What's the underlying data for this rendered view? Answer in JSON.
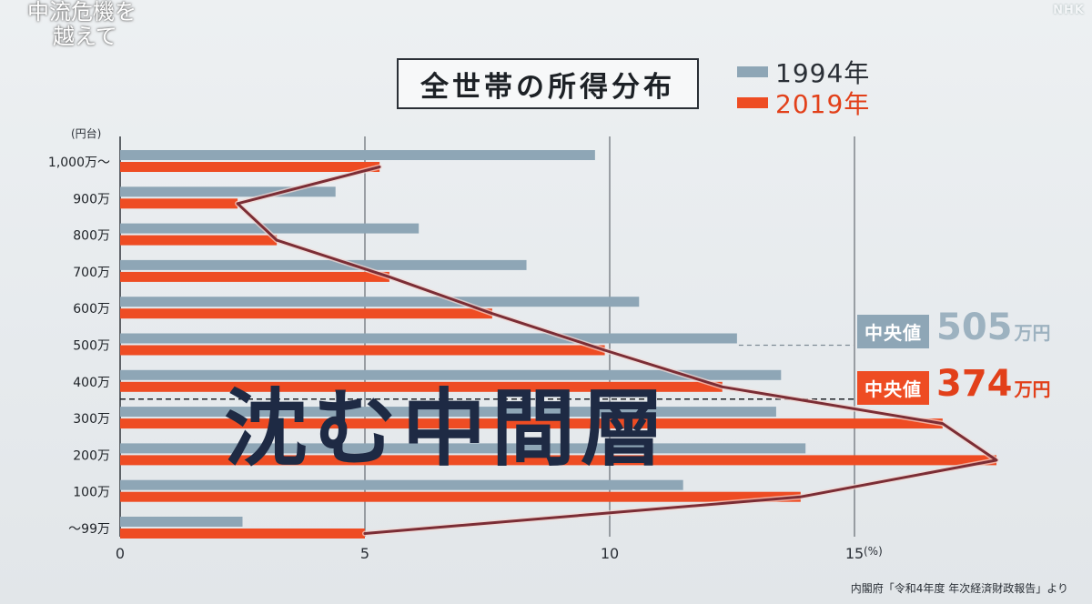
{
  "program_title": {
    "line1": "中流危機を",
    "line2": "越えて"
  },
  "broadcaster": "NHK",
  "colors": {
    "y1994": "#8ea6b6",
    "y2019": "#ee4c23",
    "trend": "#7b2d35"
  },
  "chart_data": {
    "type": "bar",
    "orientation": "horizontal",
    "title": "全世帯の所得分布",
    "y_unit": "(円台)",
    "x_unit": "(%)",
    "categories": [
      "1,000万〜",
      "900万",
      "800万",
      "700万",
      "600万",
      "500万",
      "400万",
      "300万",
      "200万",
      "100万",
      "〜99万"
    ],
    "series": [
      {
        "name": "1994年",
        "values": [
          9.7,
          4.4,
          6.1,
          8.3,
          10.6,
          12.6,
          13.5,
          13.4,
          14.0,
          11.5,
          2.5
        ]
      },
      {
        "name": "2019年",
        "values": [
          5.3,
          2.4,
          3.2,
          5.5,
          7.6,
          9.9,
          12.3,
          16.8,
          17.9,
          13.9,
          5.0
        ]
      }
    ],
    "x_ticks": [
      "0",
      "5",
      "10",
      "15"
    ],
    "xlim": [
      0,
      20
    ],
    "grid": true,
    "legend_position": "top-right",
    "medians": [
      {
        "label": "中央値",
        "value": "505",
        "unit": "万円",
        "series": "1994年"
      },
      {
        "label": "中央値",
        "value": "374",
        "unit": "万円",
        "series": "2019年"
      }
    ],
    "annotation": "沈む中間層",
    "source": "内閣府「令和4年度 年次経済財政報告」より"
  }
}
